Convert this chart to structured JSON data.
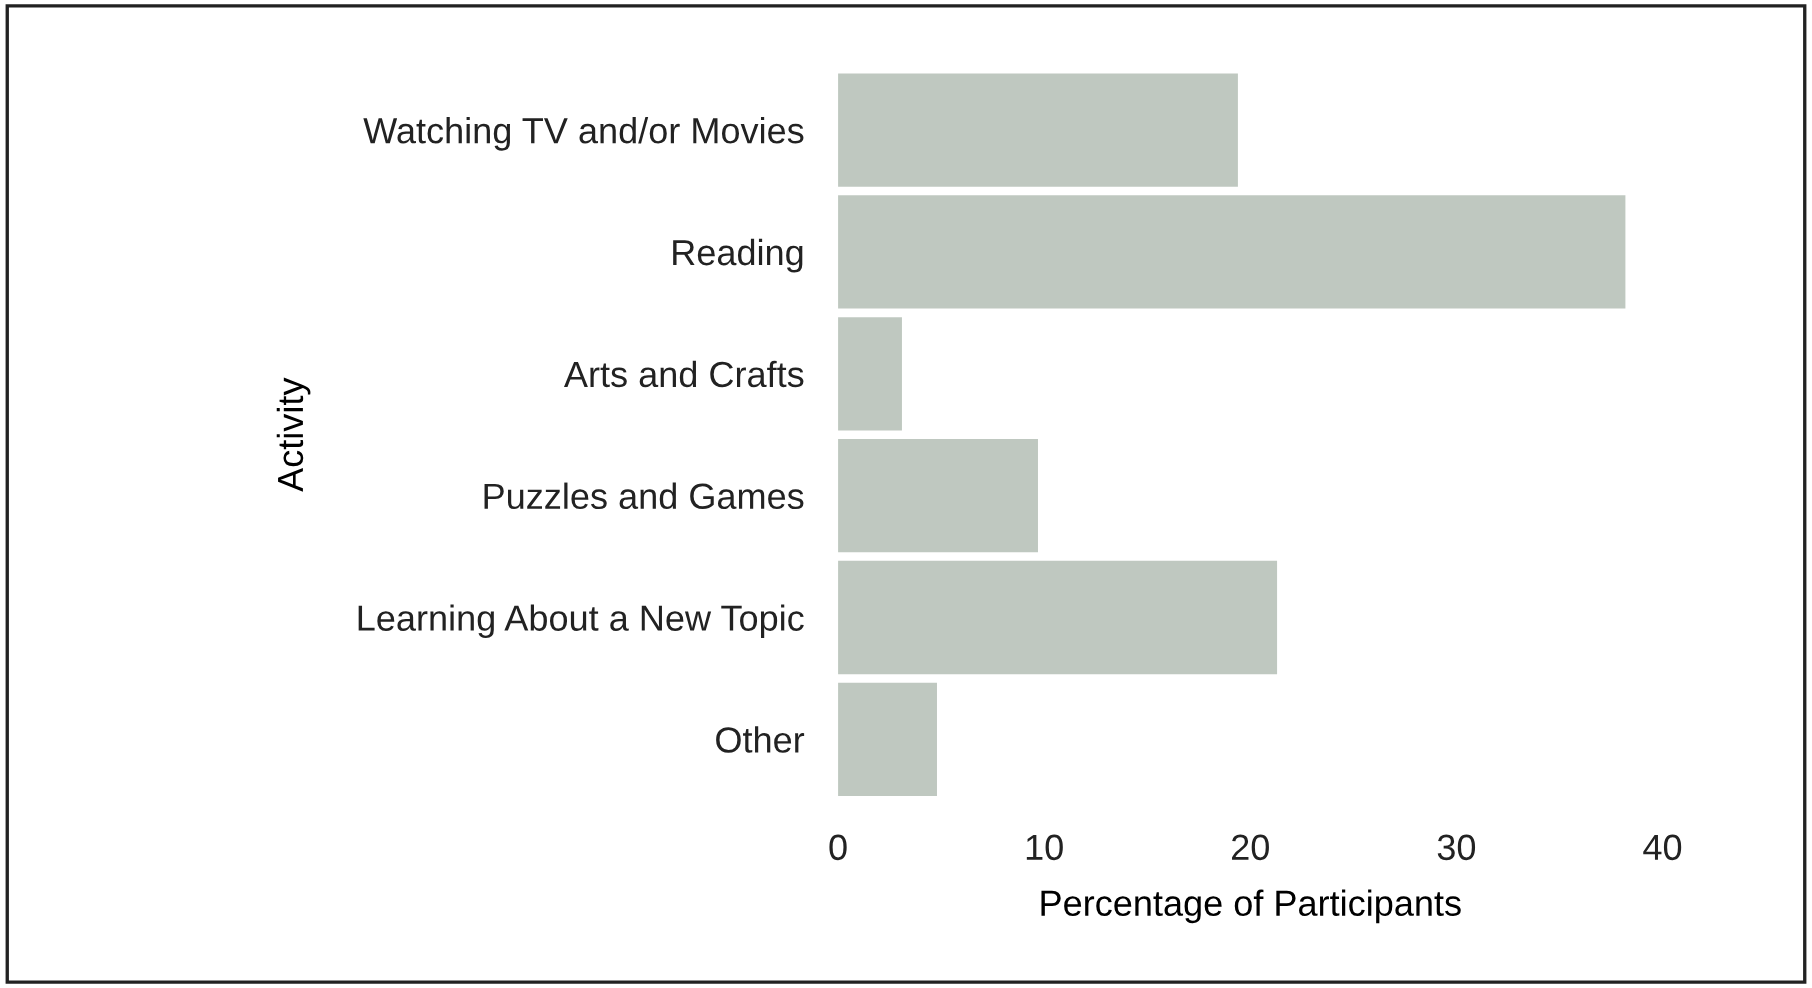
{
  "chart_data": {
    "type": "bar",
    "orientation": "horizontal",
    "xlabel": "Percentage of Participants",
    "ylabel": "Activity",
    "categories": [
      "Watching TV and/or Movies",
      "Reading",
      "Arts and Crafts",
      "Puzzles and Games",
      "Learning About a New Topic",
      "Other"
    ],
    "values": [
      19.4,
      38.2,
      3.1,
      9.7,
      21.3,
      4.8
    ],
    "color": "#bfc8c0",
    "xlim": [
      0,
      40
    ],
    "xticks": [
      0,
      10,
      20,
      30,
      40
    ],
    "grid": false
  }
}
